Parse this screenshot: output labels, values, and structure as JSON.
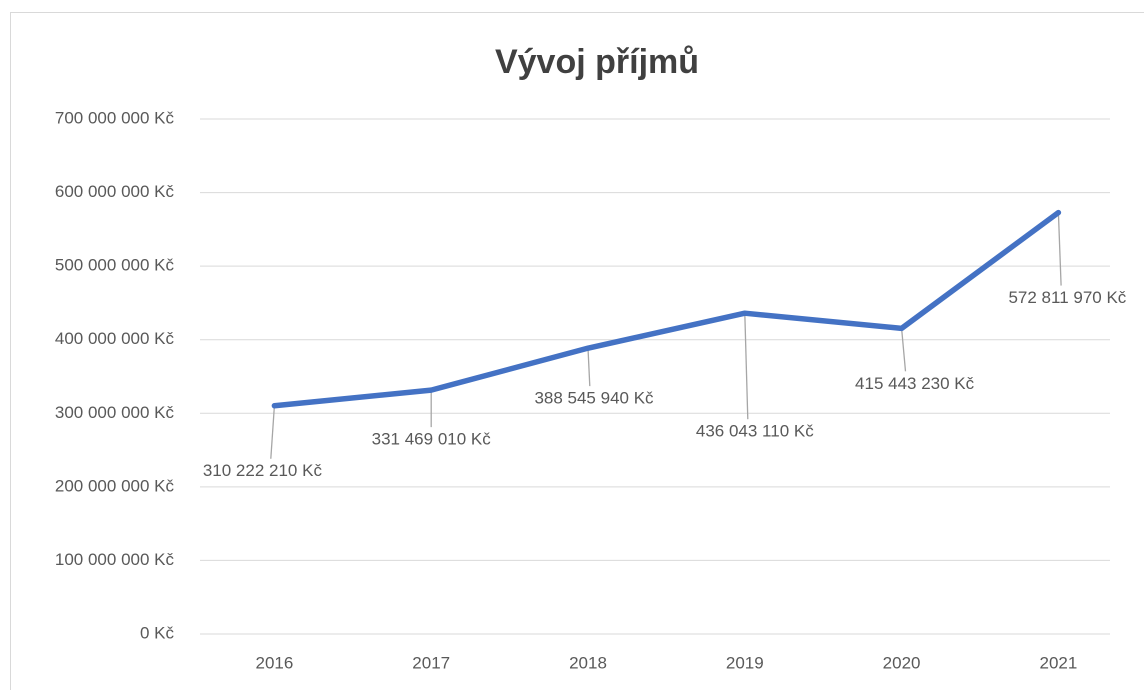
{
  "chart_data": {
    "type": "line",
    "title": "Vývoj příjmů",
    "categories": [
      "2016",
      "2017",
      "2018",
      "2019",
      "2020",
      "2021"
    ],
    "values": [
      310222210,
      331469010,
      388545940,
      436043110,
      415443230,
      572811970
    ],
    "value_labels": [
      "310 222 210 Kč",
      "331 469 010 Kč",
      "388 545 940 Kč",
      "436 043 110 Kč",
      "415 443 230 Kč",
      "572 811 970 Kč"
    ],
    "color": "#4472c4",
    "ylim": [
      0,
      700000000
    ],
    "yticks": [
      {
        "value": 0,
        "label": "0 Kč"
      },
      {
        "value": 100000000,
        "label": "100 000 000 Kč"
      },
      {
        "value": 200000000,
        "label": "200 000 000 Kč"
      },
      {
        "value": 300000000,
        "label": "300 000 000 Kč"
      },
      {
        "value": 400000000,
        "label": "400 000 000 Kč"
      },
      {
        "value": 500000000,
        "label": "500 000 000 Kč"
      },
      {
        "value": 600000000,
        "label": "600 000 000 Kč"
      },
      {
        "value": 700000000,
        "label": "700 000 000 Kč"
      }
    ],
    "grid": true
  }
}
